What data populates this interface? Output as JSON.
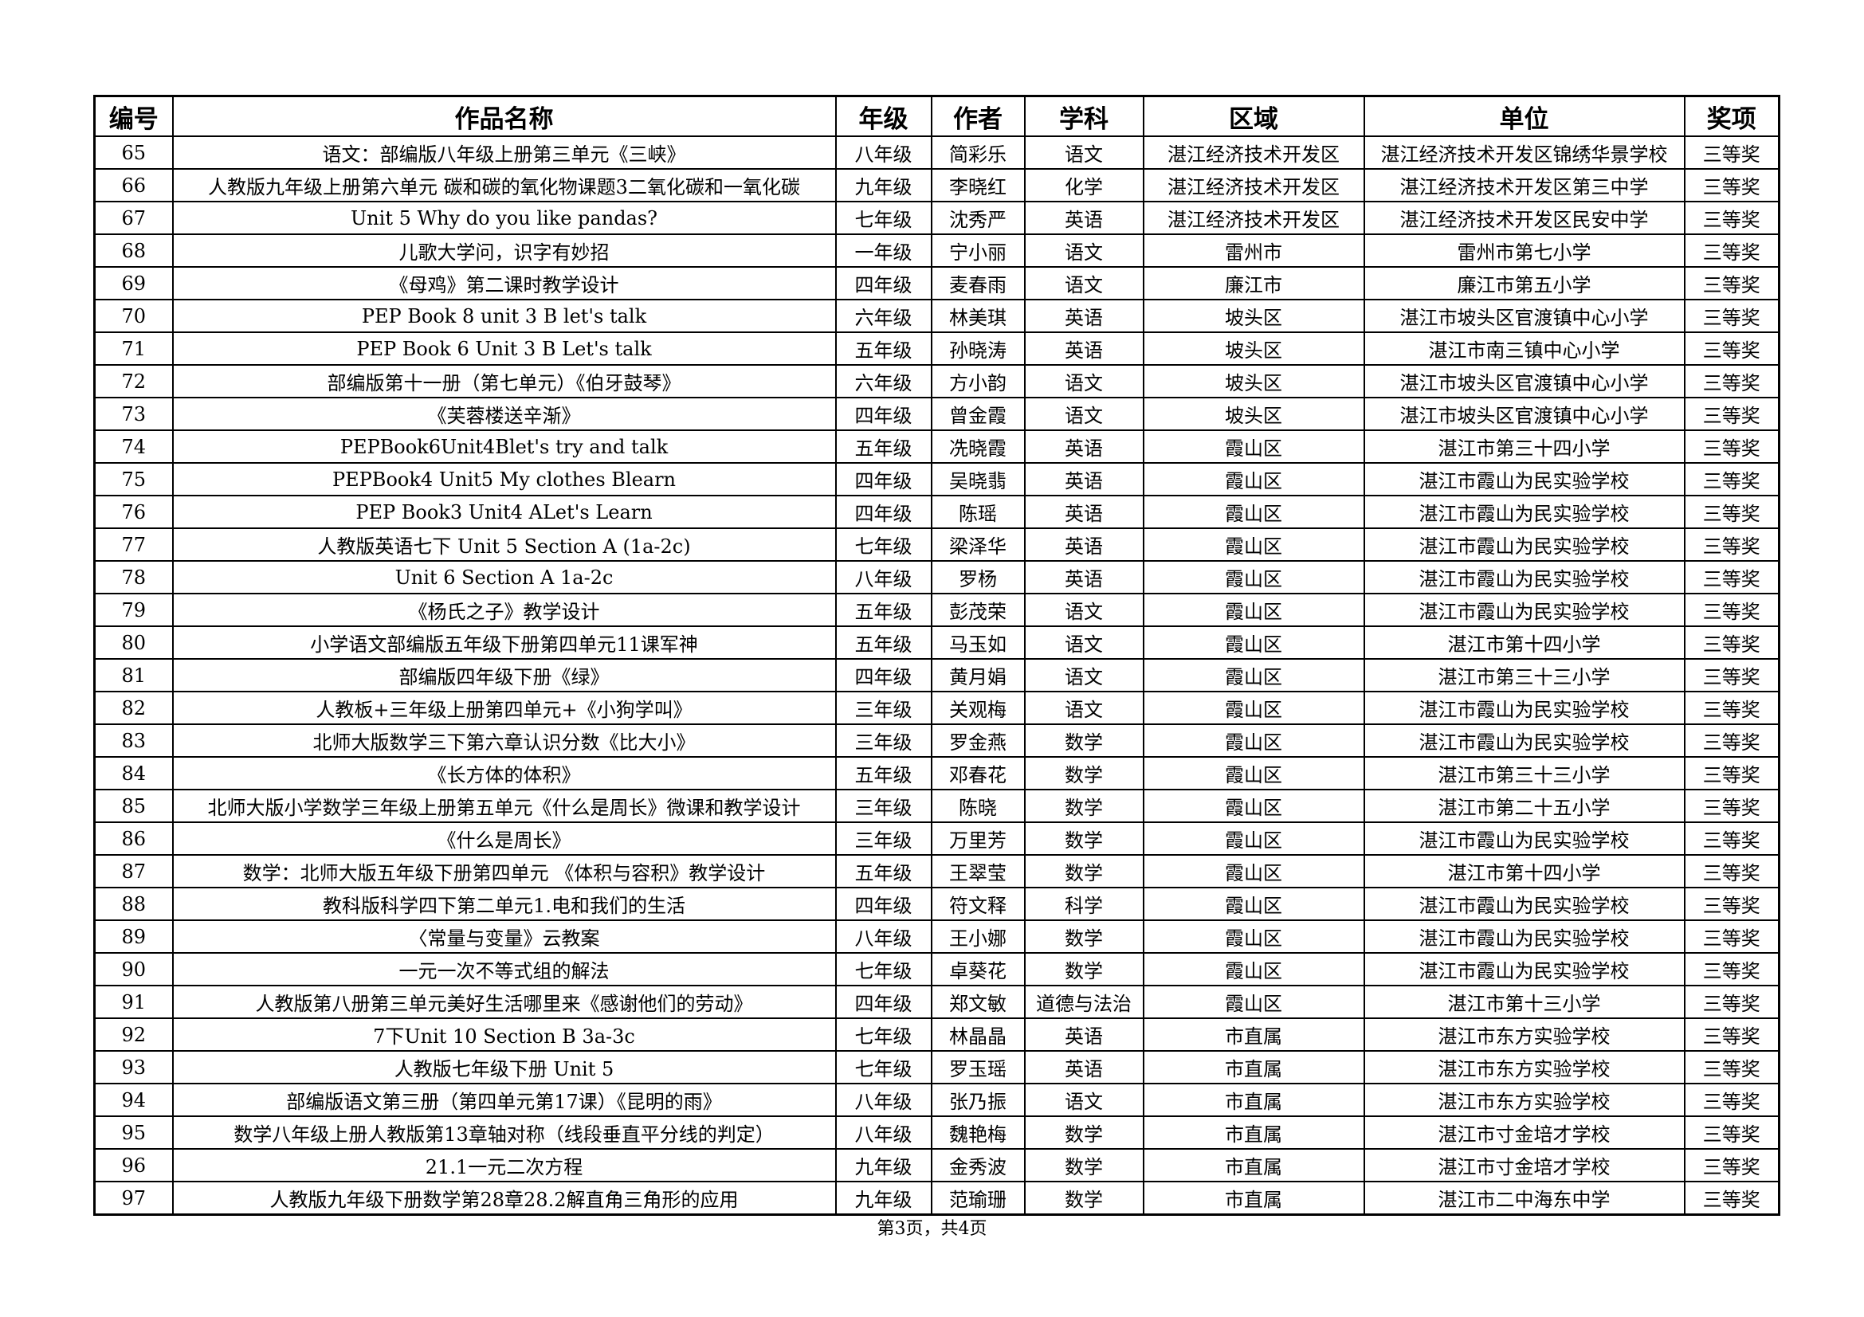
{
  "headers": [
    "编号",
    "作品名称",
    "年级",
    "作者",
    "学科",
    "区域",
    "单位",
    "奖项"
  ],
  "rows": [
    [
      "65",
      "语文：部编版八年级上册第三单元《三峡》",
      "八年级",
      "简彩乐",
      "语文",
      "湛江经济技术开发区",
      "湛江经济技术开发区锦绣华景学校",
      "三等奖"
    ],
    [
      "66",
      "人教版九年级上册第六单元 碳和碳的氧化物课题3二氧化碳和一氧化碳",
      "九年级",
      "李晓红",
      "化学",
      "湛江经济技术开发区",
      "湛江经济技术开发区第三中学",
      "三等奖"
    ],
    [
      "67",
      "Unit 5 Why do you like pandas?",
      "七年级",
      "沈秀严",
      "英语",
      "湛江经济技术开发区",
      "湛江经济技术开发区民安中学",
      "三等奖"
    ],
    [
      "68",
      "儿歌大学问，识字有妙招",
      "一年级",
      "宁小丽",
      "语文",
      "雷州市",
      "雷州市第七小学",
      "三等奖"
    ],
    [
      "69",
      "《母鸡》第二课时教学设计",
      "四年级",
      "麦春雨",
      "语文",
      "廉江市",
      "廉江市第五小学",
      "三等奖"
    ],
    [
      "70",
      "PEP Book 8 unit 3 B let's talk",
      "六年级",
      "林美琪",
      "英语",
      "坡头区",
      "湛江市坡头区官渡镇中心小学",
      "三等奖"
    ],
    [
      "71",
      "PEP Book 6 Unit 3 B Let's talk",
      "五年级",
      "孙晓涛",
      "英语",
      "坡头区",
      "湛江市南三镇中心小学",
      "三等奖"
    ],
    [
      "72",
      "部编版第十一册（第七单元）《伯牙鼓琴》",
      "六年级",
      "方小韵",
      "语文",
      "坡头区",
      "湛江市坡头区官渡镇中心小学",
      "三等奖"
    ],
    [
      "73",
      "《芙蓉楼送辛渐》",
      "四年级",
      "曾金霞",
      "语文",
      "坡头区",
      "湛江市坡头区官渡镇中心小学",
      "三等奖"
    ],
    [
      "74",
      "PEPBook6Unit4Blet's try and talk",
      "五年级",
      "冼晓霞",
      "英语",
      "霞山区",
      "湛江市第三十四小学",
      "三等奖"
    ],
    [
      "75",
      "PEPBook4 Unit5 My clothes Blearn",
      "四年级",
      "吴晓翡",
      "英语",
      "霞山区",
      "湛江市霞山为民实验学校",
      "三等奖"
    ],
    [
      "76",
      "PEP Book3 Unit4  ALet's Learn",
      "四年级",
      "陈瑶",
      "英语",
      "霞山区",
      "湛江市霞山为民实验学校",
      "三等奖"
    ],
    [
      "77",
      "人教版英语七下 Unit 5 Section A (1a-2c)",
      "七年级",
      "梁泽华",
      "英语",
      "霞山区",
      "湛江市霞山为民实验学校",
      "三等奖"
    ],
    [
      "78",
      "Unit 6 Section A 1a-2c",
      "八年级",
      "罗杨",
      "英语",
      "霞山区",
      "湛江市霞山为民实验学校",
      "三等奖"
    ],
    [
      "79",
      "《杨氏之子》教学设计",
      "五年级",
      "彭茂荣",
      "语文",
      "霞山区",
      "湛江市霞山为民实验学校",
      "三等奖"
    ],
    [
      "80",
      "小学语文部编版五年级下册第四单元11课军神",
      "五年级",
      "马玉如",
      "语文",
      "霞山区",
      "湛江市第十四小学",
      "三等奖"
    ],
    [
      "81",
      "部编版四年级下册《绿》",
      "四年级",
      "黄月娟",
      "语文",
      "霞山区",
      "湛江市第三十三小学",
      "三等奖"
    ],
    [
      "82",
      "人教板+三年级上册第四单元+《小狗学叫》",
      "三年级",
      "关观梅",
      "语文",
      "霞山区",
      "湛江市霞山为民实验学校",
      "三等奖"
    ],
    [
      "83",
      "北师大版数学三下第六章认识分数《比大小》",
      "三年级",
      "罗金燕",
      "数学",
      "霞山区",
      "湛江市霞山为民实验学校",
      "三等奖"
    ],
    [
      "84",
      "《长方体的体积》",
      "五年级",
      "邓春花",
      "数学",
      "霞山区",
      "湛江市第三十三小学",
      "三等奖"
    ],
    [
      "85",
      "北师大版小学数学三年级上册第五单元《什么是周长》微课和教学设计",
      "三年级",
      "陈晓",
      "数学",
      "霞山区",
      "湛江市第二十五小学",
      "三等奖"
    ],
    [
      "86",
      "《什么是周长》",
      "三年级",
      "万里芳",
      "数学",
      "霞山区",
      "湛江市霞山为民实验学校",
      "三等奖"
    ],
    [
      "87",
      "数学：北师大版五年级下册第四单元 《体积与容积》教学设计",
      "五年级",
      "王翠莹",
      "数学",
      "霞山区",
      "湛江市第十四小学",
      "三等奖"
    ],
    [
      "88",
      "教科版科学四下第二单元1.电和我们的生活",
      "四年级",
      "符文释",
      "科学",
      "霞山区",
      "湛江市霞山为民实验学校",
      "三等奖"
    ],
    [
      "89",
      "〈常量与变量》云教案",
      "八年级",
      "王小娜",
      "数学",
      "霞山区",
      "湛江市霞山为民实验学校",
      "三等奖"
    ],
    [
      "90",
      "一元一次不等式组的解法",
      "七年级",
      "卓葵花",
      "数学",
      "霞山区",
      "湛江市霞山为民实验学校",
      "三等奖"
    ],
    [
      "91",
      "人教版第八册第三单元美好生活哪里来《感谢他们的劳动》",
      "四年级",
      "郑文敏",
      "道德与法治",
      "霞山区",
      "湛江市第十三小学",
      "三等奖"
    ],
    [
      "92",
      "7下Unit 10 Section B  3a-3c",
      "七年级",
      "林晶晶",
      "英语",
      "市直属",
      "湛江市东方实验学校",
      "三等奖"
    ],
    [
      "93",
      "人教版七年级下册 Unit 5",
      "七年级",
      "罗玉瑶",
      "英语",
      "市直属",
      "湛江市东方实验学校",
      "三等奖"
    ],
    [
      "94",
      "部编版语文第三册（第四单元第17课）《昆明的雨》",
      "八年级",
      "张乃振",
      "语文",
      "市直属",
      "湛江市东方实验学校",
      "三等奖"
    ],
    [
      "95",
      "数学八年级上册人教版第13章轴对称（线段垂直平分线的判定）",
      "八年级",
      "魏艳梅",
      "数学",
      "市直属",
      "湛江市寸金培才学校",
      "三等奖"
    ],
    [
      "96",
      "21.1一元二次方程",
      "九年级",
      "金秀波",
      "数学",
      "市直属",
      "湛江市寸金培才学校",
      "三等奖"
    ],
    [
      "97",
      "人教版九年级下册数学第28章28.2解直角三角形的应用",
      "九年级",
      "范瑜珊",
      "数学",
      "市直属",
      "湛江市二中海东中学",
      "三等奖"
    ]
  ],
  "footer": "第3页，共4页"
}
